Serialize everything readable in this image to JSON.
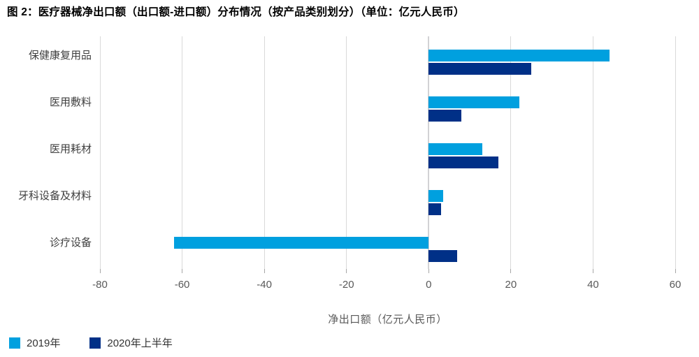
{
  "title": "图 2：医疗器械净出口额（出口额-进口额）分布情况（按产品类别划分）（单位：亿元人民币）",
  "chart_data": {
    "type": "bar",
    "orientation": "horizontal",
    "title": "图 2：医疗器械净出口额（出口额-进口额）分布情况（按产品类别划分）（单位：亿元人民币）",
    "categories": [
      "保健康复用品",
      "医用敷料",
      "医用耗材",
      "牙科设备及材料",
      "诊疗设备"
    ],
    "series": [
      {
        "name": "2019年",
        "color": "#00A0DF",
        "values": [
          44,
          22,
          13,
          3.5,
          -62
        ]
      },
      {
        "name": "2020年上半年",
        "color": "#003087",
        "values": [
          25,
          8,
          17,
          3,
          7
        ]
      }
    ],
    "xlabel": "净出口额（亿元人民币）",
    "xlim": [
      -80,
      60
    ],
    "xticks": [
      -80,
      -60,
      -40,
      -20,
      0,
      20,
      40,
      60
    ],
    "grid": true,
    "legend_position": "bottom-left",
    "colors": {
      "gridline": "#D9D9D9",
      "zero_line": "#D2D2D5",
      "tick": "#A6A6A6",
      "axis_text": "#595959",
      "category_text": "#404040",
      "legend_text": "#333333"
    }
  }
}
